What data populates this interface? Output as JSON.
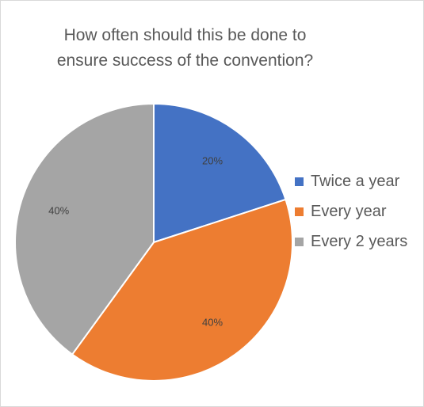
{
  "chart_data": {
    "type": "pie",
    "title": "How often should this be done to ensure success of the convention?",
    "title_lines": [
      "How often should this be done to",
      "ensure success of the convention?"
    ],
    "categories": [
      "Twice a year",
      "Every year",
      "Every 2 years"
    ],
    "values": [
      20,
      40,
      40
    ],
    "data_labels": [
      "20%",
      "40%",
      "40%"
    ],
    "colors": [
      "#4472c4",
      "#ed7d31",
      "#a5a5a5"
    ],
    "legend_position": "right",
    "start_angle": "12 o'clock, clockwise"
  }
}
